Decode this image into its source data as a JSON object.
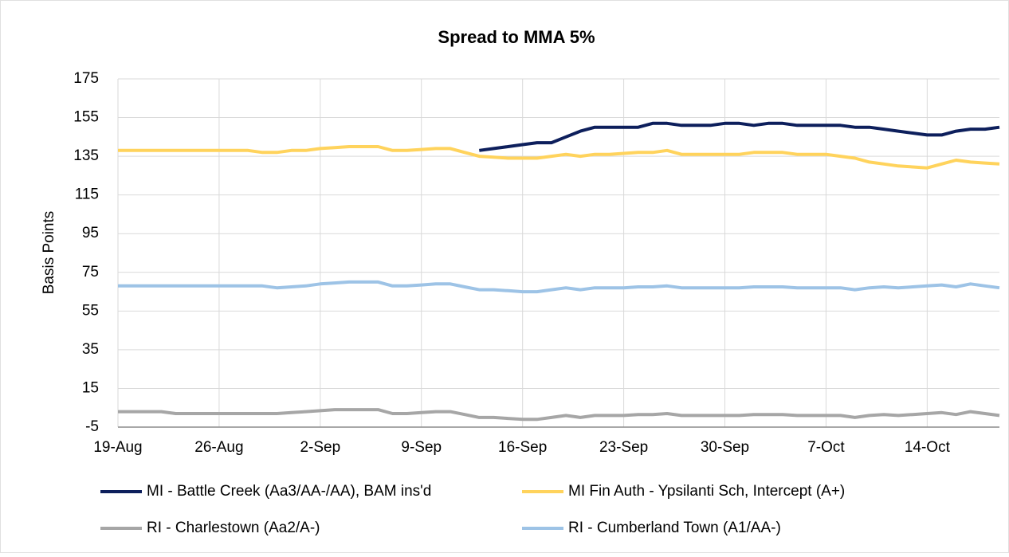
{
  "chart_data": {
    "type": "line",
    "title": "Spread to MMA 5%",
    "y_label": "Basis Points",
    "categories": [
      "19-Aug",
      null,
      null,
      null,
      null,
      null,
      null,
      "26-Aug",
      null,
      null,
      null,
      null,
      null,
      null,
      "2-Sep",
      null,
      null,
      null,
      null,
      null,
      null,
      "9-Sep",
      null,
      null,
      null,
      null,
      null,
      null,
      "16-Sep",
      null,
      null,
      null,
      null,
      null,
      null,
      "23-Sep",
      null,
      null,
      null,
      null,
      null,
      null,
      "30-Sep",
      null,
      null,
      null,
      null,
      null,
      null,
      "7-Oct",
      null,
      null,
      null,
      null,
      null,
      null,
      "14-Oct",
      null,
      null,
      null,
      null,
      null
    ],
    "series": [
      {
        "name": "MI - Battle Creek (Aa3/AA-/AA), BAM ins'd",
        "color": "#0d1f5c",
        "values": [
          null,
          null,
          null,
          null,
          null,
          null,
          null,
          null,
          null,
          null,
          null,
          null,
          null,
          null,
          null,
          null,
          null,
          null,
          null,
          null,
          null,
          null,
          null,
          null,
          null,
          138,
          139,
          140,
          141,
          142,
          142,
          145,
          148,
          150,
          150,
          150,
          150,
          152,
          152,
          151,
          151,
          151,
          152,
          152,
          151,
          152,
          152,
          151,
          151,
          151,
          151,
          150,
          150,
          149,
          148,
          147,
          146,
          146,
          148,
          149,
          149,
          150
        ]
      },
      {
        "name": "MI Fin Auth - Ypsilanti Sch, Intercept (A+)",
        "color": "#ffd35c",
        "values": [
          138,
          138,
          138,
          138,
          138,
          138,
          138,
          138,
          138,
          138,
          137,
          137,
          138,
          138,
          139,
          139.5,
          140,
          140,
          140,
          138,
          138,
          138.5,
          139,
          139,
          137,
          135,
          134.5,
          134,
          134,
          134,
          135,
          136,
          135,
          136,
          136,
          136.5,
          137,
          137,
          138,
          136,
          136,
          136,
          136,
          136,
          137,
          137,
          137,
          136,
          136,
          136,
          135,
          134,
          132,
          131,
          130,
          129.5,
          129,
          131,
          133,
          132,
          131.5,
          131
        ]
      },
      {
        "name": "RI - Charlestown (Aa2/A-)",
        "color": "#a6a6a6",
        "values": [
          3,
          3,
          3,
          3,
          2,
          2,
          2,
          2,
          2,
          2,
          2,
          2,
          2.5,
          3,
          3.5,
          4,
          4,
          4,
          4,
          2,
          2,
          2.5,
          3,
          3,
          1.5,
          0,
          0,
          -0.5,
          -1,
          -1,
          0,
          1,
          0,
          1,
          1,
          1,
          1.5,
          1.5,
          2,
          1,
          1,
          1,
          1,
          1,
          1.5,
          1.5,
          1.5,
          1,
          1,
          1,
          1,
          0,
          1,
          1.5,
          1,
          1.5,
          2,
          2.5,
          1.5,
          3,
          2,
          1
        ]
      },
      {
        "name": "RI - Cumberland Town (A1/AA-)",
        "color": "#9dc3e6",
        "values": [
          68,
          68,
          68,
          68,
          68,
          68,
          68,
          68,
          68,
          68,
          68,
          67,
          67.5,
          68,
          69,
          69.5,
          70,
          70,
          70,
          68,
          68,
          68.5,
          69,
          69,
          67.5,
          66,
          66,
          65.5,
          65,
          65,
          66,
          67,
          66,
          67,
          67,
          67,
          67.5,
          67.5,
          68,
          67,
          67,
          67,
          67,
          67,
          67.5,
          67.5,
          67.5,
          67,
          67,
          67,
          67,
          66,
          67,
          67.5,
          67,
          67.5,
          68,
          68.5,
          67.5,
          69,
          68,
          67
        ]
      }
    ],
    "ylim": [
      -5,
      175
    ],
    "yticks": [
      -5,
      15,
      35,
      55,
      75,
      95,
      115,
      135,
      155,
      175
    ],
    "grid": true
  }
}
